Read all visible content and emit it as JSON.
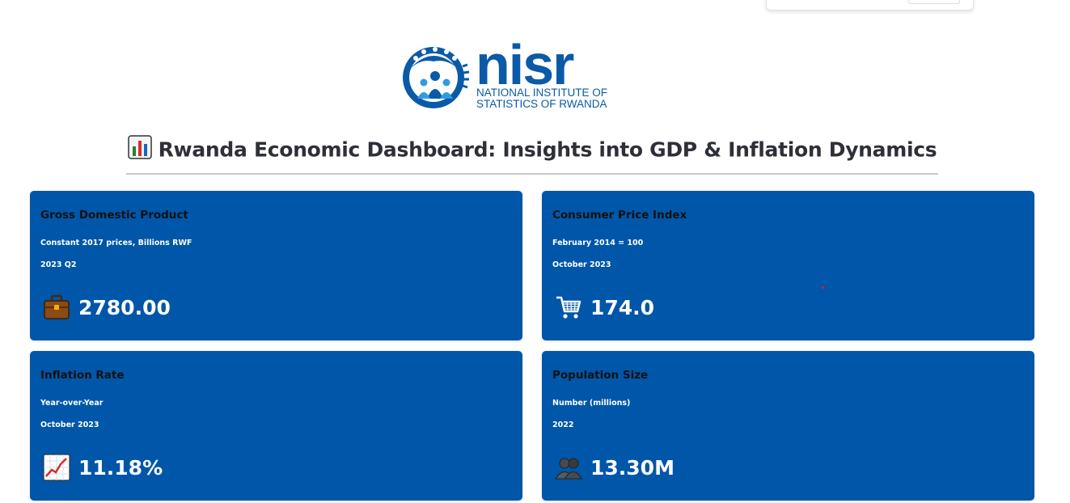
{
  "header": {
    "logo_word": "nisr",
    "logo_subtitle": "NATIONAL INSTITUTE OF\nSTATISTICS OF RWANDA",
    "title": "Rwanda Economic Dashboard: Insights into GDP & Inflation Dynamics",
    "title_icon": "bar-chart-icon"
  },
  "cards": [
    {
      "title": "Gross Domestic Product",
      "subtitle": "Constant 2017 prices, Billions RWF",
      "period": "2023 Q2",
      "value": "2780.00",
      "icon": "briefcase-icon"
    },
    {
      "title": "Consumer Price Index",
      "subtitle": "February 2014 = 100",
      "period": "October 2023",
      "value": "174.0",
      "icon": "shopping-cart-icon"
    },
    {
      "title": "Inflation Rate",
      "subtitle": "Year-over-Year",
      "period": "October 2023",
      "value": "11.18%",
      "icon": "chart-increasing-icon"
    },
    {
      "title": "Population Size",
      "subtitle": "Number (millions)",
      "period": "2022",
      "value": "13.30M",
      "icon": "people-icon"
    }
  ],
  "colors": {
    "card_bg": "#0056a8",
    "brand_blue": "#0b5aa8",
    "title_text": "#2e2f38"
  }
}
